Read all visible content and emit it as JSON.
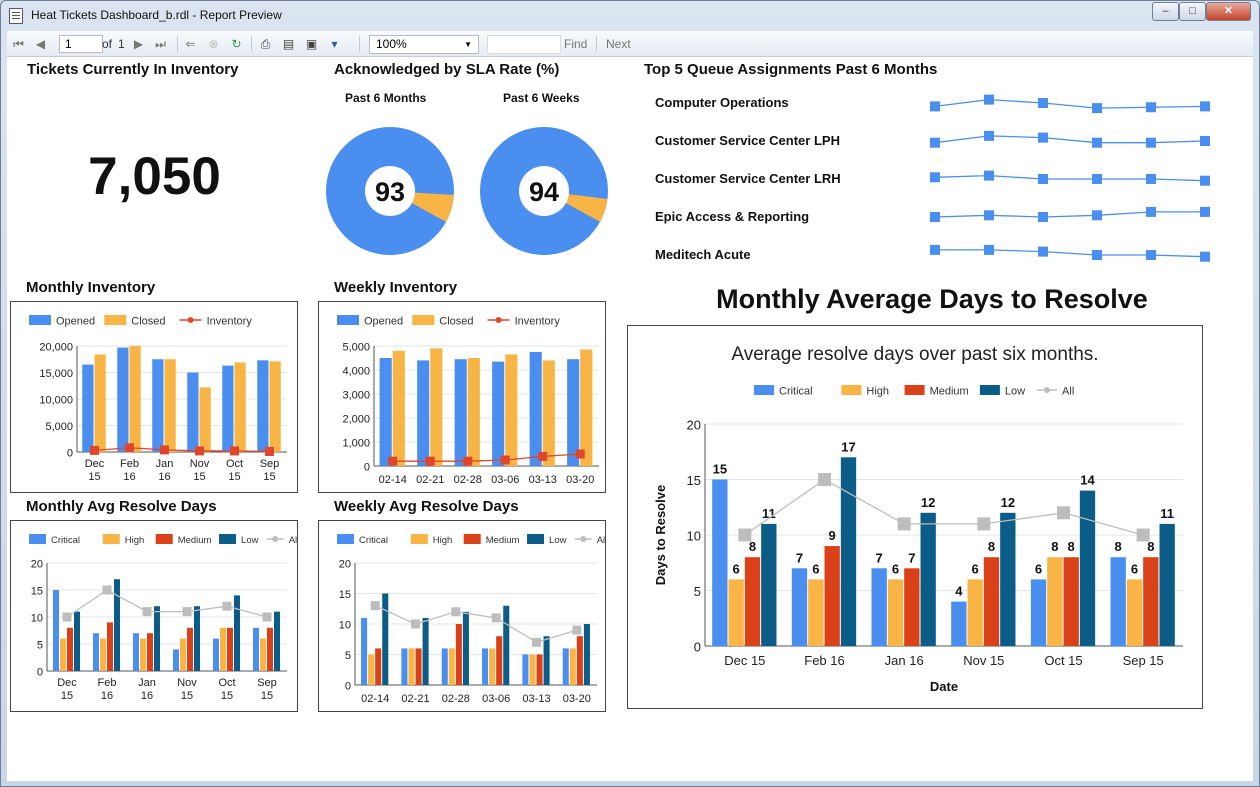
{
  "window": {
    "title": "Heat Tickets Dashboard_b.rdl - Report Preview",
    "minimize": "–",
    "maximize": "□",
    "close": "✕"
  },
  "toolbar": {
    "page": "1",
    "of_label": "of",
    "total_pages": "1",
    "zoom": "100%",
    "find": "Find",
    "next": "Next"
  },
  "kpi": {
    "title": "Tickets Currently In Inventory",
    "value": "7,050"
  },
  "sla": {
    "title": "Acknowledged by SLA Rate (%)",
    "months_label": "Past 6 Months",
    "months_value": 93,
    "weeks_label": "Past 6 Weeks",
    "weeks_value": 94
  },
  "queues": {
    "title": "Top 5 Queue Assignments Past 6 Months",
    "items": [
      {
        "name": "Computer Operations",
        "trend": [
          3,
          7,
          5,
          2,
          2.5,
          3
        ]
      },
      {
        "name": "Customer Service Center LPH",
        "trend": [
          4,
          8,
          7,
          4,
          4,
          5
        ]
      },
      {
        "name": "Customer Service Center LRH",
        "trend": [
          6,
          7,
          5,
          5,
          5,
          4
        ]
      },
      {
        "name": "Epic Access & Reporting",
        "trend": [
          5,
          6,
          5,
          6,
          8,
          8
        ]
      },
      {
        "name": "Meditech Acute",
        "trend": [
          8,
          8,
          7,
          5,
          5,
          4
        ]
      }
    ]
  },
  "titles": {
    "monthly_inventory": "Monthly Inventory",
    "weekly_inventory": "Weekly Inventory",
    "monthly_resolve": "Monthly Avg Resolve Days",
    "weekly_resolve": "Weekly Avg Resolve Days",
    "big_resolve": "Monthly Average Days to Resolve"
  },
  "colors": {
    "opened": "#4a8ef0",
    "closed": "#f8b445",
    "inventory": "#e0462a",
    "critical": "#4a8ef0",
    "high": "#f8b445",
    "medium": "#da4119",
    "low": "#0c5c88",
    "all": "#bdbdbd"
  },
  "chart_data": [
    {
      "id": "monthly_inventory",
      "type": "bar",
      "categories": [
        "Dec 15",
        "Feb 16",
        "Jan 16",
        "Nov 15",
        "Oct 15",
        "Sep 15"
      ],
      "series": [
        {
          "name": "Opened",
          "values": [
            16500,
            19700,
            17500,
            15000,
            16300,
            17300
          ]
        },
        {
          "name": "Closed",
          "values": [
            18400,
            20000,
            17500,
            12200,
            16900,
            17100
          ]
        },
        {
          "name": "Inventory",
          "type": "line",
          "values": [
            300,
            800,
            400,
            200,
            200,
            100
          ]
        }
      ],
      "ylim": [
        0,
        20000
      ],
      "yticks": [
        "0",
        "5,000",
        "10,000",
        "15,000",
        "20,000"
      ],
      "legend": "top"
    },
    {
      "id": "weekly_inventory",
      "type": "bar",
      "categories": [
        "02-14",
        "02-21",
        "02-28",
        "03-06",
        "03-13",
        "03-20"
      ],
      "series": [
        {
          "name": "Opened",
          "values": [
            4500,
            4400,
            4450,
            4350,
            4750,
            4450
          ]
        },
        {
          "name": "Closed",
          "values": [
            4800,
            4900,
            4500,
            4650,
            4400,
            4850
          ]
        },
        {
          "name": "Inventory",
          "type": "line",
          "values": [
            200,
            200,
            200,
            250,
            400,
            500
          ]
        }
      ],
      "ylim": [
        0,
        5000
      ],
      "yticks": [
        "0",
        "1,000",
        "2,000",
        "3,000",
        "4,000",
        "5,000"
      ],
      "legend": "top"
    },
    {
      "id": "monthly_resolve",
      "type": "bar",
      "categories": [
        "Dec 15",
        "Feb 16",
        "Jan 16",
        "Nov 15",
        "Oct 15",
        "Sep 15"
      ],
      "series": [
        {
          "name": "Critical",
          "values": [
            15,
            7,
            7,
            4,
            6,
            8
          ]
        },
        {
          "name": "High",
          "values": [
            6,
            6,
            6,
            6,
            8,
            6
          ]
        },
        {
          "name": "Medium",
          "values": [
            8,
            9,
            7,
            8,
            8,
            8
          ]
        },
        {
          "name": "Low",
          "values": [
            11,
            17,
            12,
            12,
            14,
            11
          ]
        },
        {
          "name": "All",
          "type": "line",
          "values": [
            10,
            15,
            11,
            11,
            12,
            10
          ]
        }
      ],
      "ylim": [
        0,
        20
      ],
      "yticks": [
        "0",
        "5",
        "10",
        "15",
        "20"
      ],
      "legend": "top"
    },
    {
      "id": "weekly_resolve",
      "type": "bar",
      "categories": [
        "02-14",
        "02-21",
        "02-28",
        "03-06",
        "03-13",
        "03-20"
      ],
      "series": [
        {
          "name": "Critical",
          "values": [
            11,
            6,
            6,
            6,
            5,
            6
          ]
        },
        {
          "name": "High",
          "values": [
            5,
            6,
            6,
            6,
            5,
            6
          ]
        },
        {
          "name": "Medium",
          "values": [
            6,
            6,
            10,
            8,
            5,
            8
          ]
        },
        {
          "name": "Low",
          "values": [
            15,
            11,
            12,
            13,
            8,
            10
          ]
        },
        {
          "name": "All",
          "type": "line",
          "values": [
            13,
            10,
            12,
            11,
            7,
            9
          ]
        }
      ],
      "ylim": [
        0,
        20
      ],
      "yticks": [
        "0",
        "5",
        "10",
        "15",
        "20"
      ],
      "legend": "top"
    },
    {
      "id": "big_resolve",
      "type": "bar",
      "title": "Average resolve days over past six months.",
      "xlabel": "Date",
      "ylabel": "Days to Resolve",
      "categories": [
        "Dec 15",
        "Feb 16",
        "Jan 16",
        "Nov 15",
        "Oct 15",
        "Sep 15"
      ],
      "series": [
        {
          "name": "Critical",
          "values": [
            15,
            7,
            7,
            4,
            6,
            8
          ]
        },
        {
          "name": "High",
          "values": [
            6,
            6,
            6,
            6,
            8,
            6
          ]
        },
        {
          "name": "Medium",
          "values": [
            8,
            9,
            7,
            8,
            8,
            8
          ]
        },
        {
          "name": "Low",
          "values": [
            11,
            17,
            12,
            12,
            14,
            11
          ]
        },
        {
          "name": "All",
          "type": "line",
          "values": [
            10,
            15,
            11,
            11,
            12,
            10
          ]
        }
      ],
      "ylim": [
        0,
        20
      ],
      "yticks": [
        "0",
        "5",
        "10",
        "15",
        "20"
      ],
      "legend": "top",
      "data_labels": true
    }
  ]
}
